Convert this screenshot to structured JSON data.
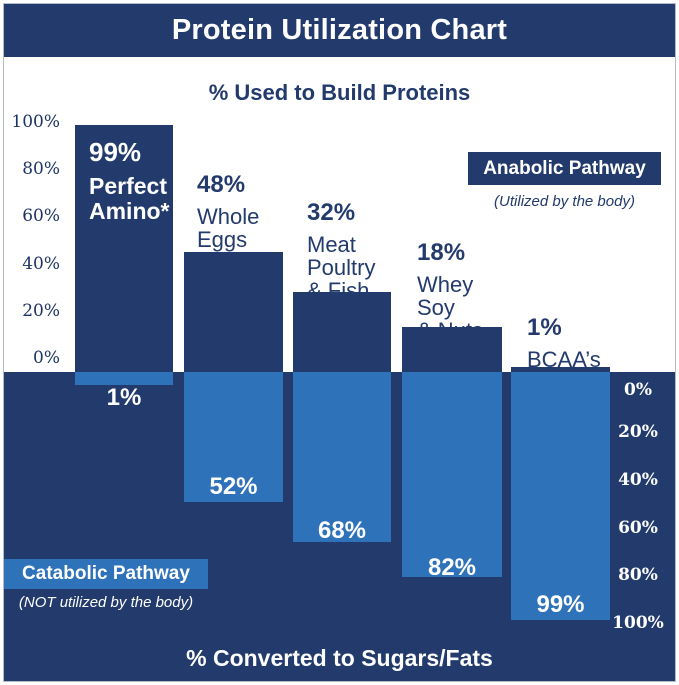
{
  "title": "Protein Utilization Chart",
  "top_section": {
    "heading": "% Used to Build Proteins"
  },
  "bottom_section": {
    "heading": "% Converted to Sugars/Fats"
  },
  "anabolic_legend": {
    "label": "Anabolic Pathway",
    "caption": "(Utilized by the body)"
  },
  "catabolic_legend": {
    "label": "Catabolic Pathway",
    "caption": "(NOT utilized by the body)"
  },
  "left_axis": {
    "ticks": [
      "100%",
      "80%",
      "60%",
      "40%",
      "20%",
      "0%"
    ]
  },
  "right_axis": {
    "ticks": [
      "0%",
      "20%",
      "40%",
      "60%",
      "80%",
      "100%"
    ]
  },
  "colors": {
    "navy": "#223a6c",
    "blue": "#2e72b9",
    "text_light": "#ffffff"
  },
  "bars": [
    {
      "up_pct": "99%",
      "line1": "Perfect",
      "line2": "Amino*",
      "down_pct": "1%"
    },
    {
      "up_pct": "48%",
      "line1": "Whole",
      "line2": "Eggs",
      "down_pct": "52%"
    },
    {
      "up_pct": "32%",
      "line1": "Meat",
      "line2": "Poultry",
      "line3": "& Fish",
      "down_pct": "68%"
    },
    {
      "up_pct": "18%",
      "line1": "Whey",
      "line2": "Soy",
      "line3": "& Nuts",
      "down_pct": "82%"
    },
    {
      "up_pct": "1%",
      "line1": "BCAA’s",
      "down_pct": "99%"
    }
  ],
  "chart_data": {
    "type": "bar",
    "orientation": "diverging-vertical",
    "title": "Protein Utilization Chart",
    "categories": [
      "Perfect Amino*",
      "Whole Eggs",
      "Meat Poultry & Fish",
      "Whey Soy & Nuts",
      "BCAA's"
    ],
    "series": [
      {
        "name": "Anabolic Pathway — % Used to Build Proteins",
        "values": [
          99,
          48,
          32,
          18,
          1
        ]
      },
      {
        "name": "Catabolic Pathway — % Converted to Sugars/Fats",
        "values": [
          1,
          52,
          68,
          82,
          99
        ]
      }
    ],
    "axis_top_ticks": [
      100,
      80,
      60,
      40,
      20,
      0
    ],
    "axis_bottom_ticks": [
      0,
      20,
      40,
      60,
      80,
      100
    ],
    "ylim": [
      0,
      100
    ],
    "grid": false,
    "legend_position": "inline-boxes"
  }
}
